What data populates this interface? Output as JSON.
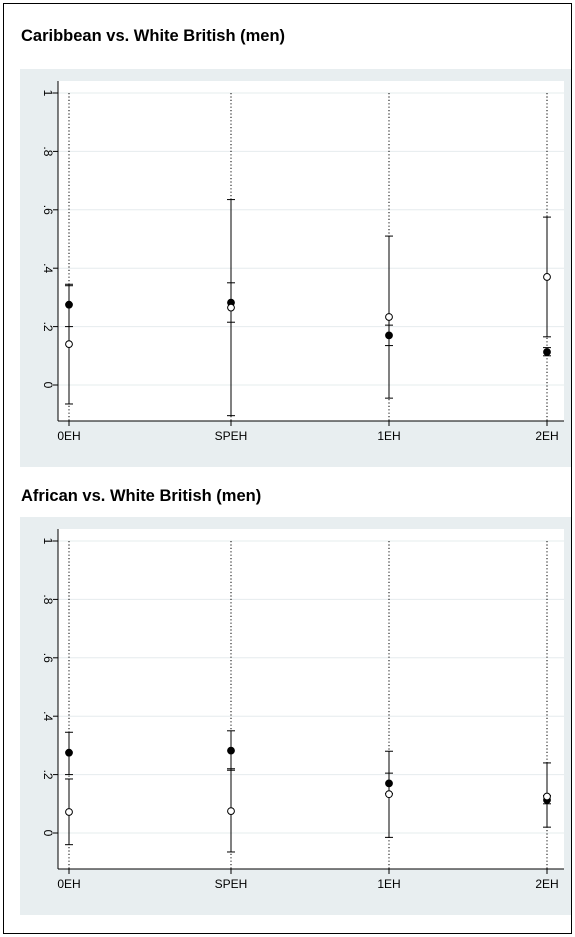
{
  "chart_data": [
    {
      "type": "scatter",
      "title": "Caribbean vs. White British (men)",
      "categories": [
        "0EH",
        "SPEH",
        "1EH",
        "2EH"
      ],
      "y_ticks": [
        "0",
        ".2",
        ".4",
        ".6",
        ".8",
        "1"
      ],
      "ylim": [
        0,
        1
      ],
      "grid": true,
      "series": [
        {
          "marker": "filled",
          "values": [
            0.275,
            0.282,
            0.17,
            0.113
          ],
          "ci_low": [
            0.2,
            0.215,
            0.135,
            0.1
          ],
          "ci_high": [
            0.345,
            0.35,
            0.205,
            0.128
          ]
        },
        {
          "marker": "hollow",
          "values": [
            0.14,
            0.265,
            0.233,
            0.37
          ],
          "ci_low": [
            -0.065,
            -0.105,
            -0.045,
            0.165
          ],
          "ci_high": [
            0.34,
            0.635,
            0.51,
            0.575
          ]
        }
      ]
    },
    {
      "type": "scatter",
      "title": "African vs. White British (men)",
      "categories": [
        "0EH",
        "SPEH",
        "1EH",
        "2EH"
      ],
      "y_ticks": [
        "0",
        ".2",
        ".4",
        ".6",
        ".8",
        "1"
      ],
      "ylim": [
        0,
        1
      ],
      "grid": true,
      "series": [
        {
          "marker": "filled",
          "values": [
            0.275,
            0.282,
            0.17,
            0.113
          ],
          "ci_low": [
            0.2,
            0.215,
            0.135,
            0.1
          ],
          "ci_high": [
            0.345,
            0.35,
            0.205,
            0.128
          ]
        },
        {
          "marker": "hollow",
          "values": [
            0.072,
            0.075,
            0.133,
            0.125
          ],
          "ci_low": [
            -0.04,
            -0.065,
            -0.015,
            0.02
          ],
          "ci_high": [
            0.185,
            0.22,
            0.28,
            0.24
          ]
        }
      ]
    }
  ]
}
